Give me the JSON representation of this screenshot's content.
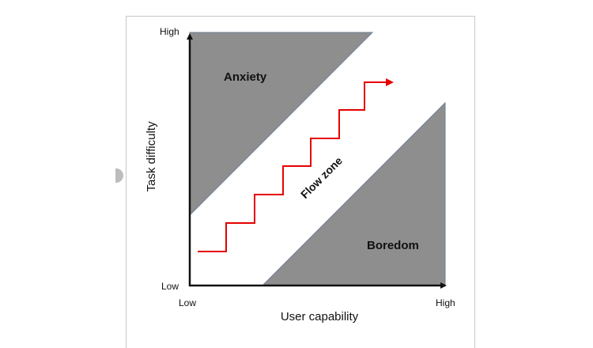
{
  "diagram": {
    "y_axis": {
      "title": "Task difficulty",
      "high_label": "High",
      "low_label": "Low"
    },
    "x_axis": {
      "title": "User capability",
      "low_label": "Low",
      "high_label": "High"
    },
    "regions": {
      "anxiety_label": "Anxiety",
      "boredom_label": "Boredom",
      "flow_label": "Flow zone"
    },
    "colors": {
      "region_fill": "#8e8e8e",
      "path": "#e60000",
      "axis": "#111111"
    }
  }
}
